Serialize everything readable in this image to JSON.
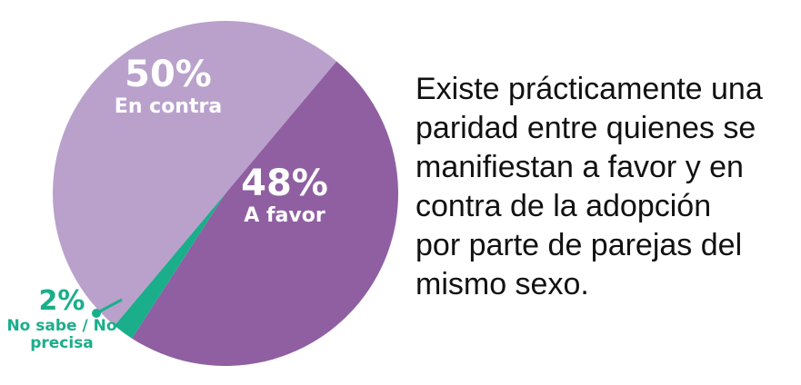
{
  "chart_data": {
    "type": "pie",
    "categories": [
      "A favor",
      "No sabe / No precisa",
      "En contra"
    ],
    "values": [
      48,
      2,
      50
    ],
    "value_labels": [
      "48%",
      "2%",
      "50%"
    ],
    "colors": [
      "#8f5fa2",
      "#1bae8b",
      "#b9a1cb"
    ],
    "annotation": [
      "Existe prácticamente una",
      "paridad entre quienes se",
      "manifiestan a favor y en",
      "contra de la adopción",
      "por parte de parejas del",
      "mismo sexo."
    ]
  }
}
